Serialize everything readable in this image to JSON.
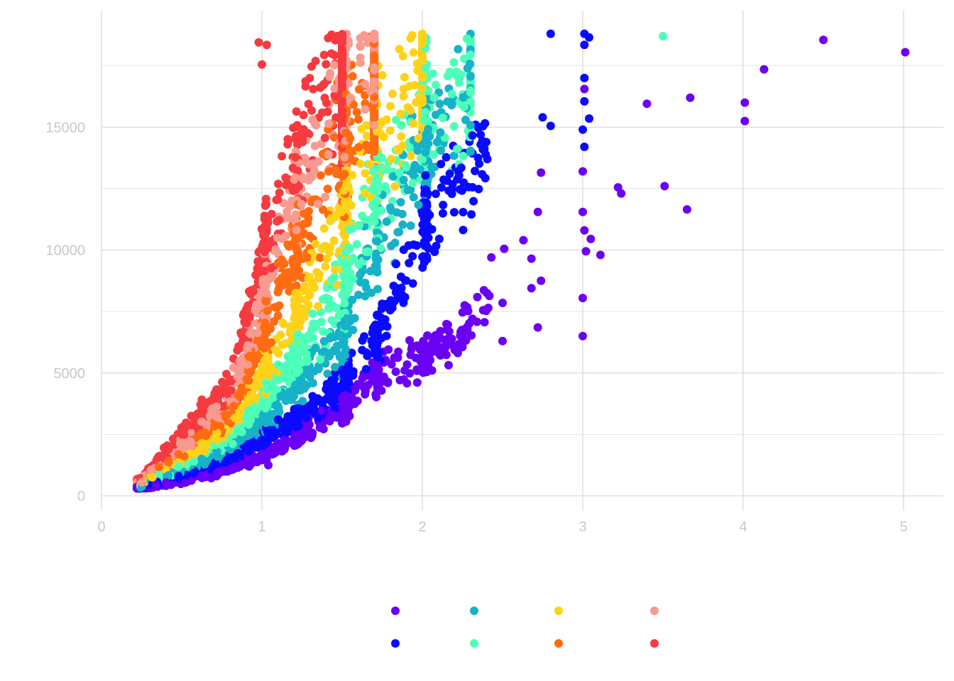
{
  "chart_data": {
    "type": "scatter",
    "title": "",
    "xlabel": "",
    "ylabel": "",
    "xlim": [
      0,
      5.2
    ],
    "ylim": [
      -500,
      19500
    ],
    "x_ticks": [
      0,
      1,
      2,
      3,
      4,
      5
    ],
    "y_ticks": [
      0,
      5000,
      10000,
      15000
    ],
    "grid": true,
    "legend": "bottom",
    "legend_labels_visible": false,
    "palette": [
      "#6a00f4",
      "#0a0aff",
      "#17b2c8",
      "#4dffb8",
      "#ffd21a",
      "#ff6b10",
      "#f79a90",
      "#f53a40"
    ],
    "series": [
      {
        "color": "#6a00f4",
        "trend": [
          [
            0.25,
            300
          ],
          [
            0.5,
            600
          ],
          [
            0.8,
            1100
          ],
          [
            1.0,
            1700
          ],
          [
            1.2,
            2300
          ],
          [
            1.5,
            3500
          ],
          [
            1.7,
            4800
          ],
          [
            2.0,
            5600
          ],
          [
            2.3,
            7000
          ],
          [
            3.0,
            10500
          ],
          [
            4.0,
            16000
          ],
          [
            5.0,
            18000
          ]
        ]
      },
      {
        "color": "#0a0aff",
        "trend": [
          [
            0.25,
            350
          ],
          [
            0.5,
            800
          ],
          [
            0.8,
            1500
          ],
          [
            1.0,
            2300
          ],
          [
            1.2,
            3100
          ],
          [
            1.5,
            4500
          ],
          [
            1.7,
            6200
          ],
          [
            2.0,
            11000
          ],
          [
            2.3,
            13500
          ],
          [
            2.6,
            15500
          ],
          [
            3.0,
            17500
          ]
        ]
      },
      {
        "color": "#17b2c8",
        "trend": [
          [
            0.25,
            400
          ],
          [
            0.5,
            1000
          ],
          [
            0.8,
            1900
          ],
          [
            1.0,
            3000
          ],
          [
            1.2,
            4300
          ],
          [
            1.5,
            6500
          ],
          [
            1.7,
            10000
          ],
          [
            2.0,
            14000
          ],
          [
            2.3,
            16000
          ]
        ]
      },
      {
        "color": "#4dffb8",
        "trend": [
          [
            0.25,
            450
          ],
          [
            0.5,
            1200
          ],
          [
            0.8,
            2300
          ],
          [
            1.0,
            3800
          ],
          [
            1.2,
            5500
          ],
          [
            1.5,
            8500
          ],
          [
            1.7,
            12000
          ],
          [
            2.0,
            15500
          ],
          [
            2.3,
            17000
          ]
        ]
      },
      {
        "color": "#ffd21a",
        "trend": [
          [
            0.25,
            500
          ],
          [
            0.5,
            1400
          ],
          [
            0.8,
            2700
          ],
          [
            1.0,
            4800
          ],
          [
            1.2,
            7000
          ],
          [
            1.5,
            11500
          ],
          [
            1.7,
            14500
          ],
          [
            2.0,
            17000
          ]
        ]
      },
      {
        "color": "#ff6b10",
        "trend": [
          [
            0.25,
            550
          ],
          [
            0.5,
            1700
          ],
          [
            0.8,
            3200
          ],
          [
            1.0,
            6500
          ],
          [
            1.2,
            10000
          ],
          [
            1.5,
            14500
          ],
          [
            1.7,
            16500
          ]
        ]
      },
      {
        "color": "#f79a90",
        "trend": [
          [
            0.25,
            600
          ],
          [
            0.5,
            2000
          ],
          [
            0.8,
            3800
          ],
          [
            1.0,
            8000
          ],
          [
            1.2,
            12000
          ],
          [
            1.5,
            16500
          ],
          [
            1.7,
            17800
          ]
        ]
      },
      {
        "color": "#f53a40",
        "trend": [
          [
            0.25,
            650
          ],
          [
            0.5,
            2400
          ],
          [
            0.8,
            4600
          ],
          [
            1.0,
            10000
          ],
          [
            1.2,
            14000
          ],
          [
            1.5,
            17500
          ]
        ]
      }
    ],
    "outliers": [
      {
        "x": 5.01,
        "y": 18050,
        "color": "#6a00f4"
      },
      {
        "x": 4.5,
        "y": 18550,
        "color": "#6a00f4"
      },
      {
        "x": 4.13,
        "y": 17350,
        "color": "#6a00f4"
      },
      {
        "x": 4.01,
        "y": 16000,
        "color": "#6a00f4"
      },
      {
        "x": 4.01,
        "y": 15250,
        "color": "#6a00f4"
      },
      {
        "x": 3.67,
        "y": 16200,
        "color": "#6a00f4"
      },
      {
        "x": 3.65,
        "y": 11650,
        "color": "#6a00f4"
      },
      {
        "x": 3.51,
        "y": 12600,
        "color": "#6a00f4"
      },
      {
        "x": 3.5,
        "y": 18700,
        "color": "#4dffb8"
      },
      {
        "x": 3.4,
        "y": 15950,
        "color": "#6a00f4"
      },
      {
        "x": 3.24,
        "y": 12300,
        "color": "#6a00f4"
      },
      {
        "x": 3.22,
        "y": 12550,
        "color": "#6a00f4"
      },
      {
        "x": 3.11,
        "y": 9800,
        "color": "#6a00f4"
      },
      {
        "x": 3.05,
        "y": 10450,
        "color": "#6a00f4"
      },
      {
        "x": 3.04,
        "y": 15350,
        "color": "#0a0aff"
      },
      {
        "x": 3.04,
        "y": 18650,
        "color": "#0a0aff"
      },
      {
        "x": 3.01,
        "y": 18800,
        "color": "#0a0aff"
      },
      {
        "x": 3.01,
        "y": 18350,
        "color": "#0a0aff"
      },
      {
        "x": 3.01,
        "y": 17000,
        "color": "#0a0aff"
      },
      {
        "x": 3.01,
        "y": 16550,
        "color": "#6a00f4"
      },
      {
        "x": 3.01,
        "y": 16050,
        "color": "#0a0aff"
      },
      {
        "x": 3.0,
        "y": 14900,
        "color": "#0a0aff"
      },
      {
        "x": 3.01,
        "y": 14200,
        "color": "#0a0aff"
      },
      {
        "x": 3.0,
        "y": 13200,
        "color": "#6a00f4"
      },
      {
        "x": 3.0,
        "y": 11550,
        "color": "#6a00f4"
      },
      {
        "x": 3.01,
        "y": 10800,
        "color": "#6a00f4"
      },
      {
        "x": 3.02,
        "y": 9950,
        "color": "#6a00f4"
      },
      {
        "x": 3.0,
        "y": 8050,
        "color": "#6a00f4"
      },
      {
        "x": 3.0,
        "y": 6500,
        "color": "#6a00f4"
      },
      {
        "x": 2.8,
        "y": 18800,
        "color": "#0a0aff"
      },
      {
        "x": 2.8,
        "y": 15050,
        "color": "#0a0aff"
      },
      {
        "x": 2.75,
        "y": 15400,
        "color": "#0a0aff"
      },
      {
        "x": 2.74,
        "y": 13150,
        "color": "#6a00f4"
      },
      {
        "x": 2.72,
        "y": 11550,
        "color": "#6a00f4"
      },
      {
        "x": 2.74,
        "y": 8750,
        "color": "#6a00f4"
      },
      {
        "x": 2.72,
        "y": 6850,
        "color": "#6a00f4"
      },
      {
        "x": 2.68,
        "y": 9650,
        "color": "#6a00f4"
      },
      {
        "x": 2.68,
        "y": 8450,
        "color": "#6a00f4"
      },
      {
        "x": 2.63,
        "y": 10400,
        "color": "#6a00f4"
      },
      {
        "x": 2.51,
        "y": 10050,
        "color": "#6a00f4"
      },
      {
        "x": 2.5,
        "y": 7850,
        "color": "#6a00f4"
      },
      {
        "x": 2.5,
        "y": 6300,
        "color": "#6a00f4"
      },
      {
        "x": 2.43,
        "y": 9700,
        "color": "#6a00f4"
      },
      {
        "x": 1.77,
        "y": 4650,
        "color": "#6a00f4"
      },
      {
        "x": 1.89,
        "y": 5100,
        "color": "#6a00f4"
      },
      {
        "x": 2.0,
        "y": 5050,
        "color": "#6a00f4"
      },
      {
        "x": 2.06,
        "y": 5100,
        "color": "#6a00f4"
      },
      {
        "x": 1.5,
        "y": 2950,
        "color": "#6a00f4"
      },
      {
        "x": 1.04,
        "y": 1250,
        "color": "#6a00f4"
      },
      {
        "x": 0.98,
        "y": 18450,
        "color": "#f53a40"
      },
      {
        "x": 1.03,
        "y": 18350,
        "color": "#f53a40"
      },
      {
        "x": 1.0,
        "y": 17550,
        "color": "#f53a40"
      }
    ],
    "dense_points_count": 5200
  }
}
